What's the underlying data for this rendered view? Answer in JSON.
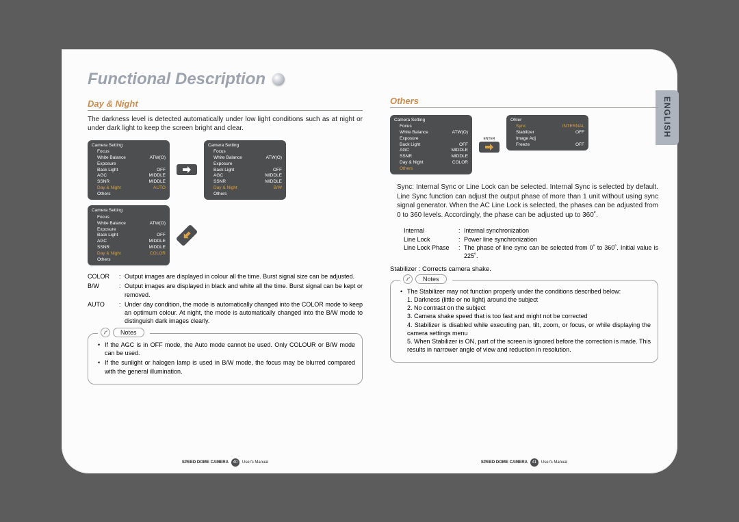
{
  "lang_label": "ENGLISH",
  "title": "Functional Description",
  "left": {
    "section": "Day & Night",
    "intro": "The darkness level is detected automatically under low light conditions such as at night or under dark light to keep the screen bright and clear.",
    "box_header": "Camera Setting",
    "rows": [
      {
        "k": "Focus",
        "v": ""
      },
      {
        "k": "White Balance",
        "v": "ATW(O)"
      },
      {
        "k": "Exposure",
        "v": ""
      },
      {
        "k": "Back Light",
        "v": "OFF"
      },
      {
        "k": "AGC",
        "v": "MIDDLE"
      },
      {
        "k": "SSNR",
        "v": "MIDDLE"
      }
    ],
    "dn_auto": {
      "k": "Day & Night",
      "v": "AUTO"
    },
    "dn_bw": {
      "k": "Day & Night",
      "v": "B/W"
    },
    "dn_color": {
      "k": "Day & Night",
      "v": "COLOR"
    },
    "others": "Others",
    "modes": [
      {
        "label": "COLOR",
        "text": "Output images are displayed in colour all the time. Burst signal size can be adjusted."
      },
      {
        "label": "B/W",
        "text": "Output images are displayed in black and white all the time. Burst signal can be kept or removed."
      },
      {
        "label": "AUTO",
        "text": "Under day condition, the mode is automatically changed into the COLOR mode to keep an optimum colour. At night, the mode is automatically changed into the B/W mode to distinguish dark images clearly."
      }
    ],
    "notes_label": "Notes",
    "notes": [
      "If the AGC is in OFF mode, the Auto mode cannot be used. Only COLOUR or B/W mode can be used.",
      "If the sunlight or halogen lamp is used in B/W mode, the focus may be blurred compared with the general illumination."
    ],
    "footer_prefix": "SPEED DOME CAMERA",
    "footer_suffix": "User's Manual",
    "page": "40"
  },
  "right": {
    "section": "Others",
    "box_header": "Camera Setting",
    "left_rows": [
      {
        "k": "Focus",
        "v": ""
      },
      {
        "k": "White Balance",
        "v": "ATW(O)"
      },
      {
        "k": "Exposure",
        "v": ""
      },
      {
        "k": "Back Light",
        "v": "OFF"
      },
      {
        "k": "AGC",
        "v": "MIDDLE"
      },
      {
        "k": "SSNR",
        "v": "MIDDLE"
      },
      {
        "k": "Day & Night",
        "v": "COLOR"
      }
    ],
    "left_sel": {
      "k": "Others",
      "v": ""
    },
    "enter_label": "ENTER",
    "other_box_header": "Ohter",
    "other_rows": [
      {
        "k": "Sync",
        "v": "INTERNAL"
      },
      {
        "k": "Stabilizer",
        "v": "OFF"
      },
      {
        "k": "Image Adj",
        "v": ""
      },
      {
        "k": "Freeze",
        "v": "OFF"
      }
    ],
    "sync_para": "Sync: Internal Sync or Line Lock can be selected. Internal Sync is selected by default. Line Sync function can adjust the output phase of more than 1 unit without using sync signal generator. When the AC Line Lock is selected, the phases can be adjusted from 0 to 360 levels. Accordingly, the phase can be adjusted up to 360˚.",
    "defs": [
      {
        "label": "Internal",
        "text": "Internal synchronization"
      },
      {
        "label": "Line Lock",
        "text": "Power line synchronization"
      },
      {
        "label": "Line Lock Phase",
        "text": "The  phase  of  line  sync  can  be  selected  from  0˚  to  360˚.  Initial value is 225˚."
      }
    ],
    "stabilizer": "Stabilizer : Corrects camera shake.",
    "notes_label": "Notes",
    "notes_intro": "The Stabilizer may not function properly under the conditions described below:",
    "notes_list": [
      "1. Darkness (little or no light) around the subject",
      "2. No contrast on the subject",
      "3. Camera shake speed that is too fast and might not be corrected",
      "4. Stabilizer is disabled while executing pan, tilt, zoom, or focus, or while displaying the camera settings menu",
      "5. When Stabilizer is ON, part of the screen is ignored before the correction is made. This results in narrower angle of view and reduction in resolution."
    ],
    "footer_prefix": "SPEED DOME CAMERA",
    "footer_suffix": "User's Manual",
    "page": "41"
  },
  "colors": {
    "page_bg": "#5c5c5c",
    "sheet_bg": "#fcfcfc",
    "title_color": "#9ca2ae",
    "section_color": "#c98d4e",
    "box_bg": "#4d4e4f",
    "highlight": "#d7a24b",
    "tab_bg": "#aeb4bd"
  }
}
